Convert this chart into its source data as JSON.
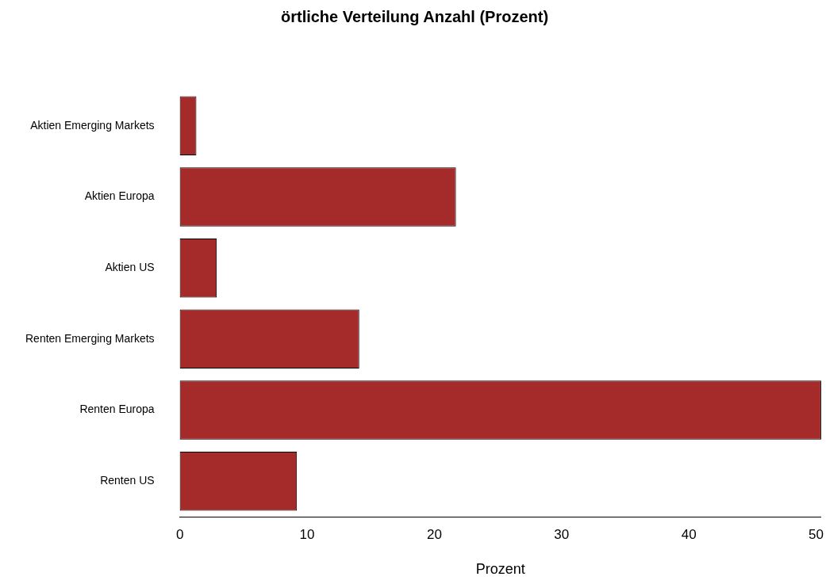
{
  "chart_data": {
    "type": "bar",
    "orientation": "horizontal",
    "title": "örtliche Verteilung Anzahl (Prozent)",
    "xlabel": "Prozent",
    "categories": [
      "Aktien Emerging Markets",
      "Aktien Europa",
      "Aktien US",
      "Renten Emerging Markets",
      "Renten Europa",
      "Renten US"
    ],
    "values": [
      1.3,
      21.7,
      2.9,
      14.1,
      50.4,
      9.2
    ],
    "color": "#a52a2a",
    "xlim": [
      0,
      50.4
    ],
    "xticks": [
      0,
      10,
      20,
      30,
      40,
      50
    ]
  }
}
